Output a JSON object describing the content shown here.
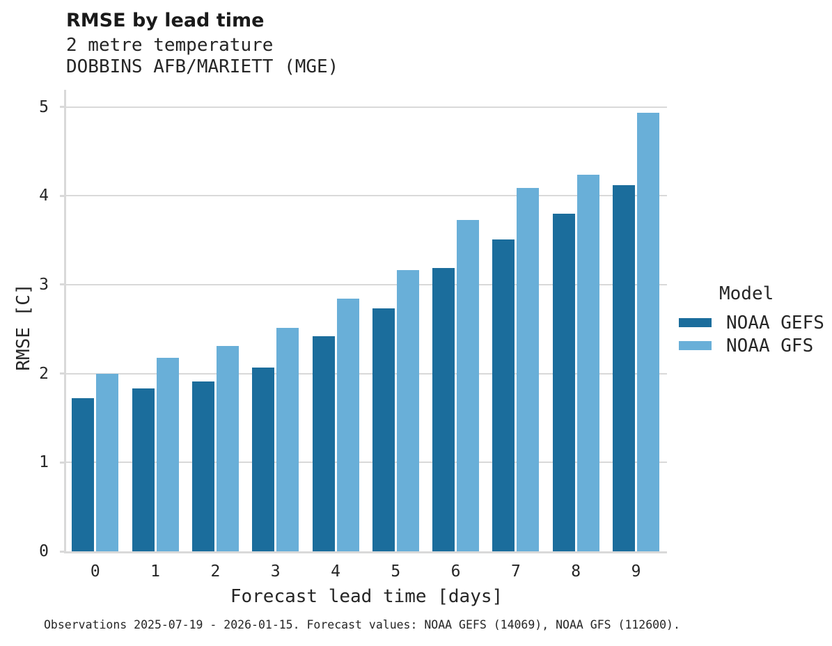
{
  "chart_data": {
    "type": "bar",
    "title": "RMSE by lead time",
    "subtitle": [
      "2 metre temperature",
      "DOBBINS AFB/MARIETT (MGE)"
    ],
    "xlabel": "Forecast lead time [days]",
    "ylabel": "RMSE [C]",
    "categories": [
      "0",
      "1",
      "2",
      "3",
      "4",
      "5",
      "6",
      "7",
      "8",
      "9"
    ],
    "series": [
      {
        "name": "NOAA GEFS",
        "color": "#1b6d9c",
        "values": [
          1.72,
          1.83,
          1.91,
          2.07,
          2.42,
          2.73,
          3.19,
          3.51,
          3.8,
          4.12
        ]
      },
      {
        "name": "NOAA GFS",
        "color": "#69afd8",
        "values": [
          2.0,
          2.18,
          2.31,
          2.51,
          2.84,
          3.16,
          3.73,
          4.09,
          4.24,
          4.93
        ]
      }
    ],
    "ylim": [
      0,
      5.19
    ],
    "yticks": [
      0,
      1,
      2,
      3,
      4,
      5
    ],
    "grid": true,
    "legend_title": "Model",
    "legend_position": "right",
    "footnote": "Observations 2025-07-19 - 2026-01-15. Forecast values: NOAA GEFS (14069), NOAA GFS (112600).",
    "colors": {
      "grid": "#d9d9d9",
      "text": "#262626",
      "background": "#ffffff"
    }
  }
}
